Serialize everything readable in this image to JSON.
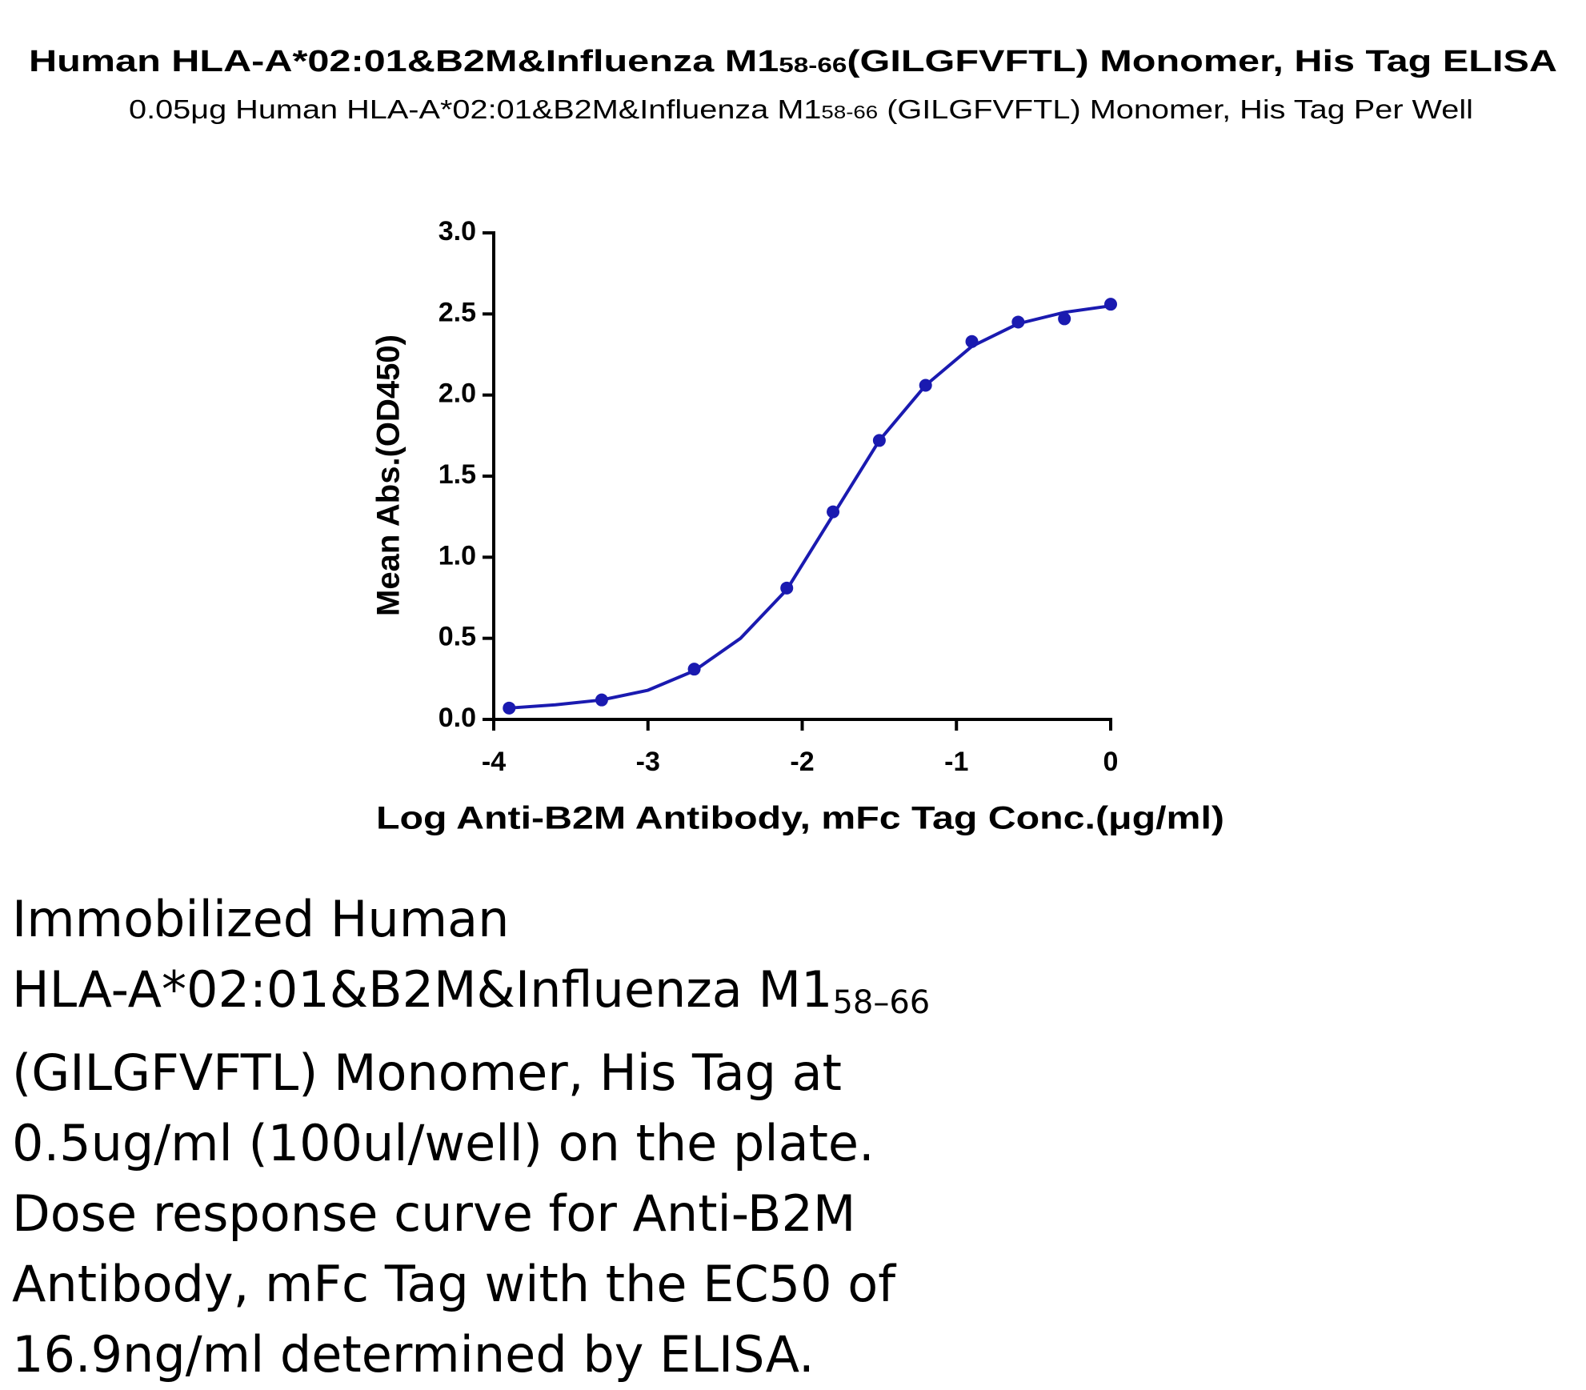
{
  "chart_data": {
    "type": "scatter",
    "title": {
      "before": "Human HLA-A*02:01&B2M&Influenza M1",
      "sub": "58-66",
      "after": "(GILGFVFTL) Monomer, His Tag ELISA"
    },
    "subtitle": {
      "before": "0.05μg Human HLA-A*02:01&B2M&Influenza M1",
      "sub": "58-66",
      "after": " (GILGFVFTL) Monomer, His Tag Per Well"
    },
    "x_label": "Log Anti-B2M Antibody, mFc Tag Conc.(μg/ml)",
    "y_label": "Mean Abs.(OD450)",
    "xlim": [
      -4,
      0
    ],
    "ylim": [
      0,
      3
    ],
    "xticks": [
      -4,
      -3,
      -2,
      -1,
      0
    ],
    "yticks": [
      {
        "value": 0,
        "label": "0.0"
      },
      0.5,
      {
        "value": 1,
        "label": "1.0"
      },
      1.5,
      {
        "value": 2,
        "label": "2.0"
      },
      2.5,
      {
        "value": 3,
        "label": "3.0"
      }
    ],
    "color": "#1a1ab0",
    "series": [
      {
        "type": "scatter",
        "x": [
          -3.9,
          -3.3,
          -2.7,
          -2.1,
          -1.8,
          -1.5,
          -1.2,
          -0.9,
          -0.6,
          -0.3,
          0
        ],
        "values": [
          0.07,
          0.12,
          0.31,
          0.81,
          1.28,
          1.72,
          2.06,
          2.33,
          2.45,
          2.47,
          2.56
        ]
      },
      {
        "type": "line",
        "x": [
          -3.9,
          -3.6,
          -3.3,
          -3.0,
          -2.7,
          -2.4,
          -2.1,
          -1.8,
          -1.5,
          -1.2,
          -0.9,
          -0.6,
          -0.3,
          0
        ],
        "values": [
          0.07,
          0.09,
          0.12,
          0.18,
          0.3,
          0.5,
          0.8,
          1.26,
          1.72,
          2.06,
          2.3,
          2.44,
          2.51,
          2.55
        ]
      }
    ]
  },
  "caption": {
    "lines": [
      {
        "text": "Immobilized Human"
      },
      {
        "text": "HLA-A*02:01&B2M&Influenza M1",
        "sub": "58–66"
      },
      {
        "text": "(GILGFVFTL) Monomer, His Tag at"
      },
      {
        "text": "0.5ug/ml (100ul/well) on the plate."
      },
      {
        "text": "Dose response curve for Anti-B2M"
      },
      {
        "text": "Antibody, mFc Tag with the EC50 of"
      },
      {
        "text": "16.9ng/ml determined by ELISA."
      }
    ]
  }
}
